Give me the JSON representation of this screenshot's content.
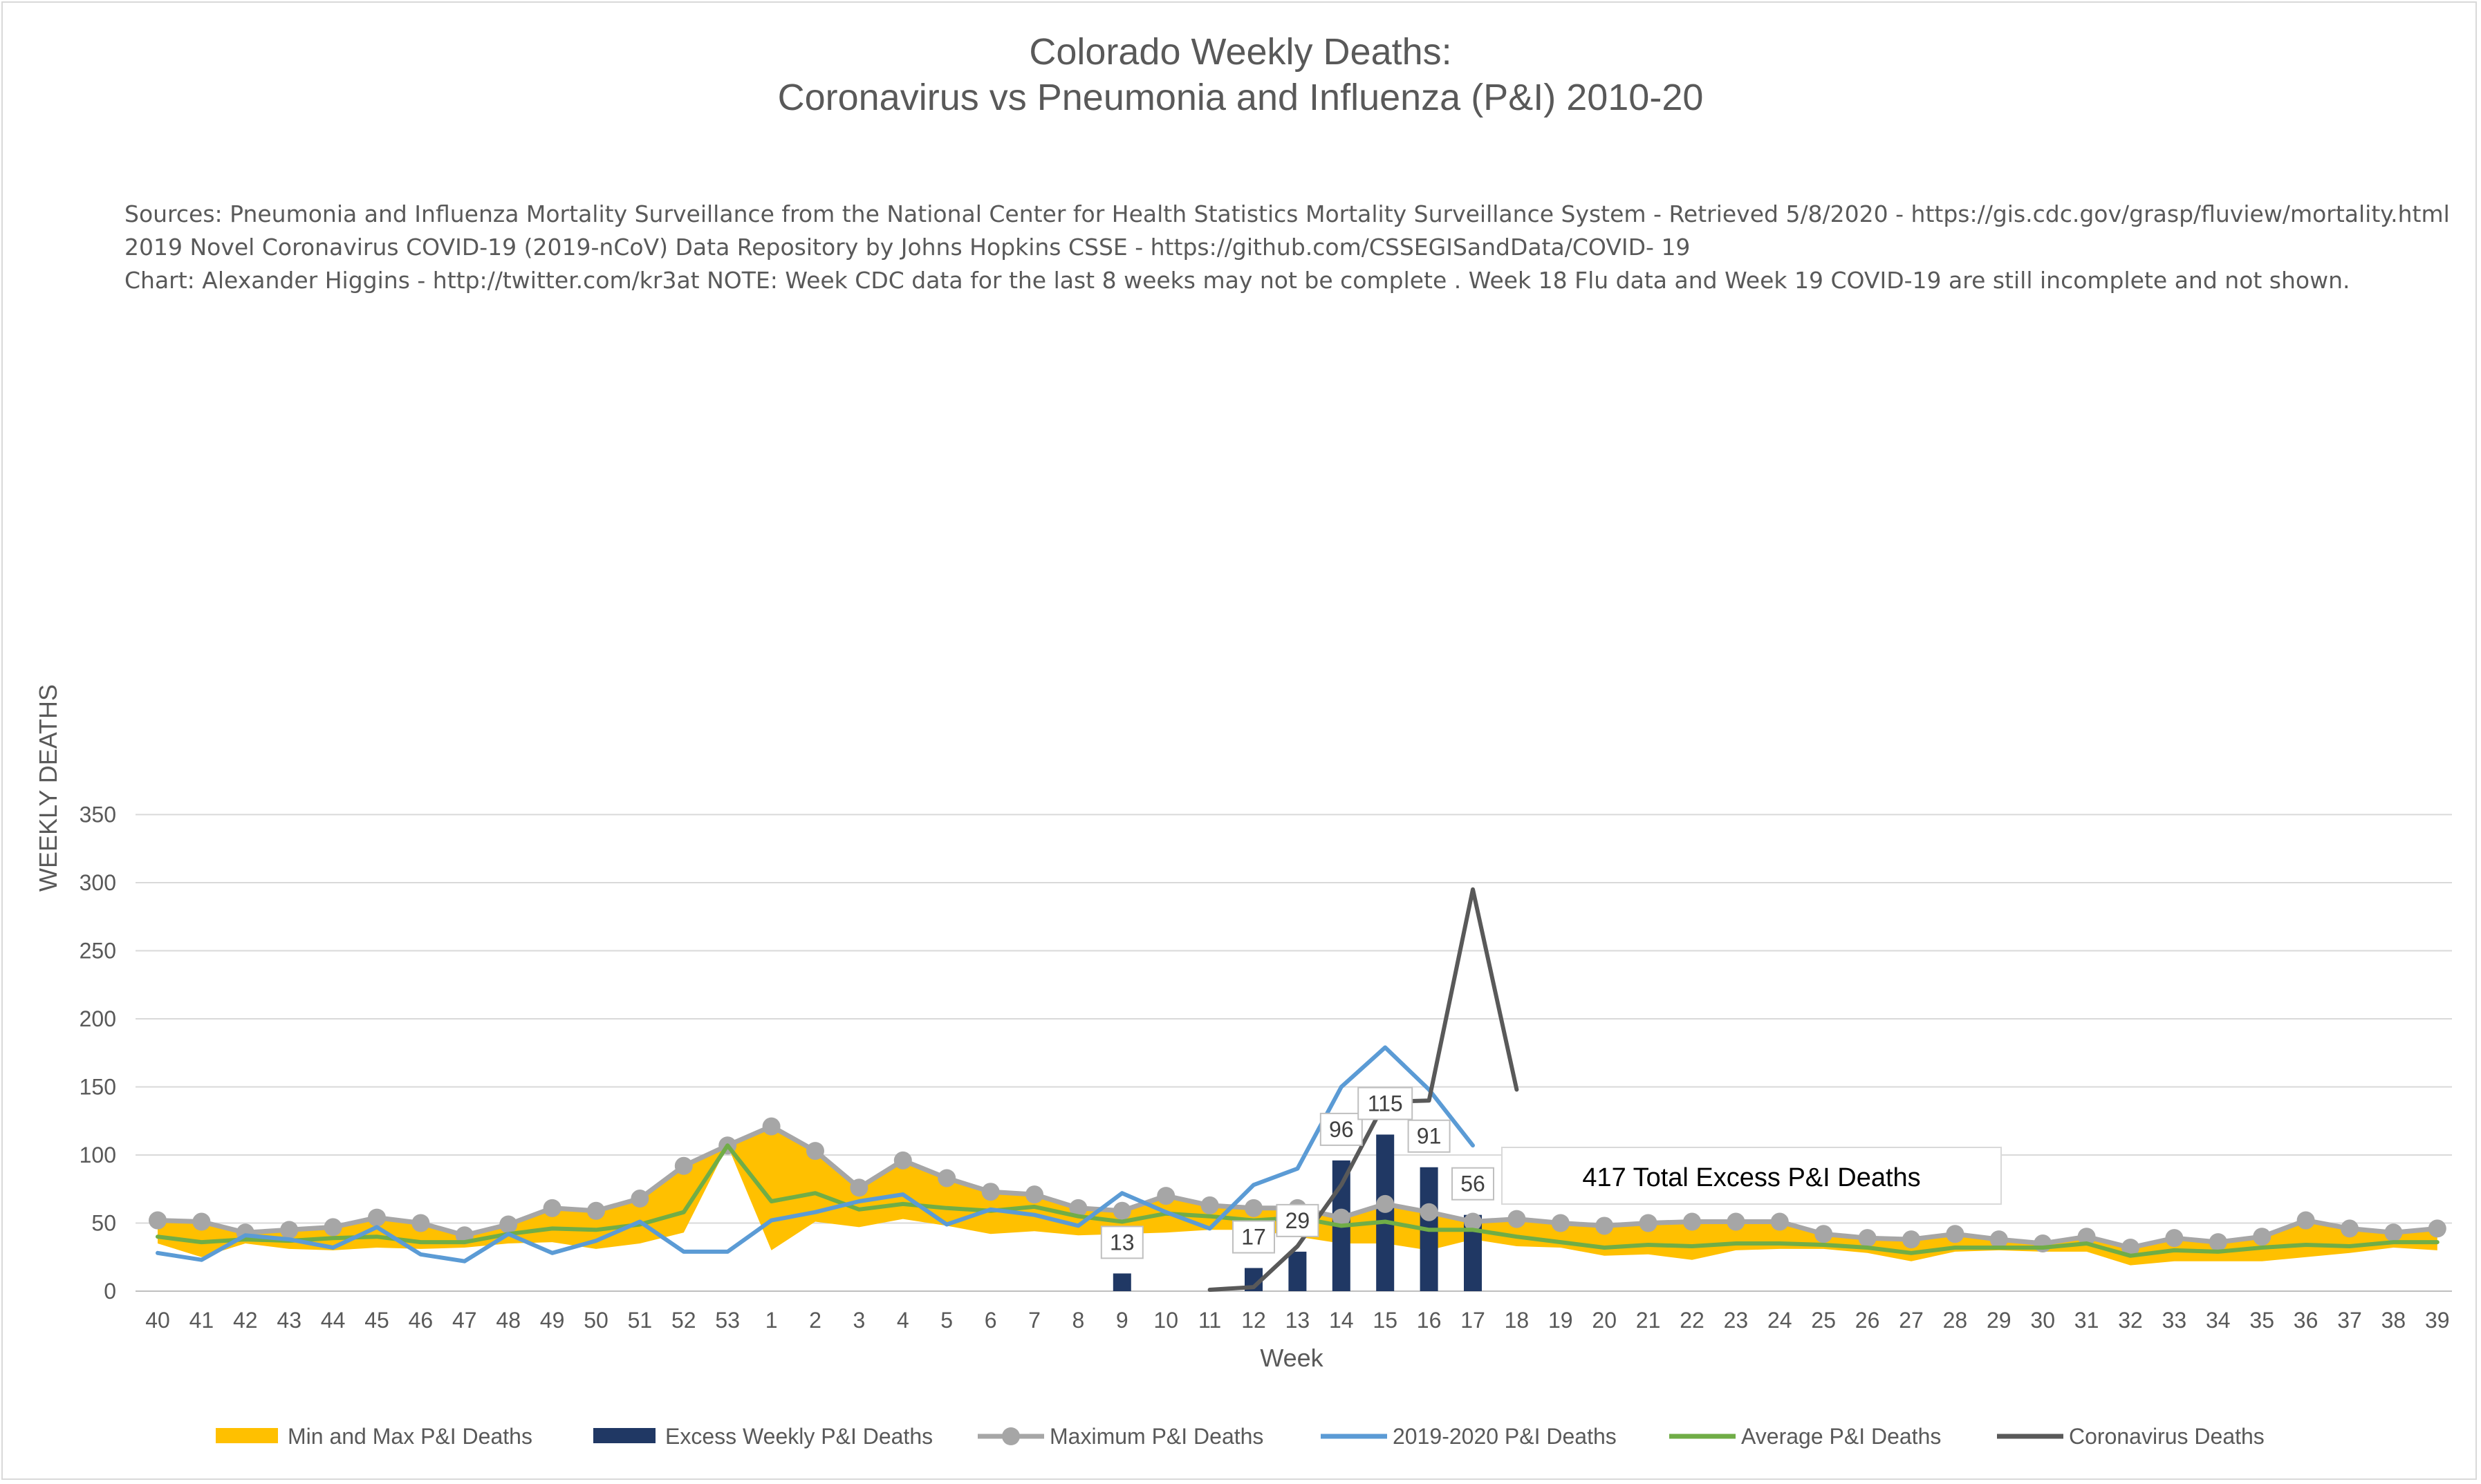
{
  "chart_data": {
    "type": "line",
    "title": "Colorado Weekly Deaths:",
    "subtitle": "Coronavirus vs Pneumonia and Influenza (P&I) 2010-20",
    "sources": [
      "Sources: Pneumonia and Influenza Mortality Surveillance from the National Center for Health Statistics Mortality Surveillance System - Retrieved 5/8/2020 - https://gis.cdc.gov/grasp/fluview/mortality.html",
      "2019 Novel Coronavirus COVID-19 (2019-nCoV) Data Repository by Johns Hopkins CSSE - https://github.com/CSSEGISandData/COVID- 19",
      "Chart: Alexander Higgins - http://twitter.com/kr3at   NOTE: Week CDC data for the last 8 weeks may not be complete . Week 18 Flu data and Week 19 COVID-19 are still incomplete and not shown."
    ],
    "xlabel": "Week",
    "ylabel": "WEEKLY DEATHS",
    "ylim": [
      0,
      350
    ],
    "yticks": [
      0,
      50,
      100,
      150,
      200,
      250,
      300,
      350
    ],
    "grid": true,
    "legend_position": "bottom",
    "categories": [
      "40",
      "41",
      "42",
      "43",
      "44",
      "45",
      "46",
      "47",
      "48",
      "49",
      "50",
      "51",
      "52",
      "53",
      "1",
      "2",
      "3",
      "4",
      "5",
      "6",
      "7",
      "8",
      "9",
      "10",
      "11",
      "12",
      "13",
      "14",
      "15",
      "16",
      "17",
      "18",
      "19",
      "20",
      "21",
      "22",
      "23",
      "24",
      "25",
      "26",
      "27",
      "28",
      "29",
      "30",
      "31",
      "32",
      "33",
      "34",
      "35",
      "36",
      "37",
      "38",
      "39"
    ],
    "band": {
      "name": "Min and Max P&I Deaths",
      "color": "#ffc000",
      "min": [
        35,
        25,
        35,
        31,
        30,
        32,
        31,
        32,
        35,
        36,
        31,
        35,
        43,
        107,
        30,
        51,
        47,
        53,
        48,
        42,
        44,
        41,
        42,
        43,
        45,
        45,
        40,
        35,
        35,
        30,
        38,
        33,
        32,
        26,
        27,
        23,
        30,
        31,
        31,
        28,
        22,
        29,
        30,
        29,
        29,
        19,
        22,
        22,
        22,
        25,
        28,
        32,
        30
      ],
      "max": [
        52,
        51,
        43,
        45,
        47,
        54,
        50,
        41,
        49,
        61,
        59,
        68,
        92,
        107,
        121,
        103,
        76,
        96,
        83,
        73,
        71,
        61,
        59,
        70,
        63,
        61,
        61,
        54,
        64,
        58,
        51,
        53,
        50,
        48,
        50,
        51,
        51,
        51,
        42,
        39,
        38,
        42,
        38,
        35,
        40,
        32,
        39,
        36,
        40,
        52,
        46,
        43,
        46
      ]
    },
    "series": [
      {
        "name": "Excess Weekly P&I Deaths",
        "kind": "bar",
        "color": "#203864",
        "values": [
          null,
          null,
          null,
          null,
          null,
          null,
          null,
          null,
          null,
          null,
          null,
          null,
          null,
          null,
          null,
          null,
          null,
          null,
          null,
          null,
          null,
          null,
          13,
          null,
          null,
          17,
          29,
          96,
          115,
          91,
          56,
          null,
          null,
          null,
          null,
          null,
          null,
          null,
          null,
          null,
          null,
          null,
          null,
          null,
          null,
          null,
          null,
          null,
          null,
          null,
          null,
          null,
          null
        ]
      },
      {
        "name": "Maximum P&I Deaths",
        "kind": "line-markers",
        "color": "#a6a6a6",
        "values": [
          52,
          51,
          43,
          45,
          47,
          54,
          50,
          41,
          49,
          61,
          59,
          68,
          92,
          107,
          121,
          103,
          76,
          96,
          83,
          73,
          71,
          61,
          59,
          70,
          63,
          61,
          61,
          54,
          64,
          58,
          51,
          53,
          50,
          48,
          50,
          51,
          51,
          51,
          42,
          39,
          38,
          42,
          38,
          35,
          40,
          32,
          39,
          36,
          40,
          52,
          46,
          43,
          46
        ]
      },
      {
        "name": "2019-2020 P&I Deaths",
        "kind": "line",
        "color": "#5b9bd5",
        "values": [
          28,
          23,
          41,
          38,
          32,
          47,
          27,
          22,
          42,
          28,
          37,
          51,
          29,
          29,
          52,
          58,
          66,
          71,
          49,
          60,
          56,
          48,
          72,
          58,
          46,
          78,
          90,
          150,
          179,
          148,
          107,
          null,
          null,
          null,
          null,
          null,
          null,
          null,
          null,
          null,
          null,
          null,
          null,
          null,
          null,
          null,
          null,
          null,
          null,
          null,
          null,
          null,
          null
        ]
      },
      {
        "name": "Average P&I Deaths",
        "kind": "line",
        "color": "#70ad47",
        "values": [
          40,
          36,
          38,
          37,
          39,
          40,
          36,
          36,
          42,
          46,
          45,
          49,
          58,
          107,
          66,
          72,
          60,
          64,
          61,
          59,
          62,
          55,
          51,
          57,
          55,
          52,
          54,
          48,
          51,
          45,
          45,
          40,
          36,
          32,
          34,
          33,
          35,
          35,
          34,
          32,
          28,
          32,
          32,
          32,
          35,
          26,
          30,
          29,
          32,
          34,
          33,
          36,
          36
        ]
      },
      {
        "name": "Coronavirus Deaths",
        "kind": "line",
        "color": "#595959",
        "values": [
          null,
          null,
          null,
          null,
          null,
          null,
          null,
          null,
          null,
          null,
          null,
          null,
          null,
          null,
          null,
          null,
          null,
          null,
          null,
          null,
          null,
          null,
          null,
          null,
          1,
          3,
          33,
          78,
          139,
          140,
          295,
          148,
          null,
          null,
          null,
          null,
          null,
          null,
          null,
          null,
          null,
          null,
          null,
          null,
          null,
          null,
          null,
          null,
          null,
          null,
          null,
          null,
          null
        ]
      }
    ],
    "annotation": "417 Total Excess P&I Deaths"
  }
}
